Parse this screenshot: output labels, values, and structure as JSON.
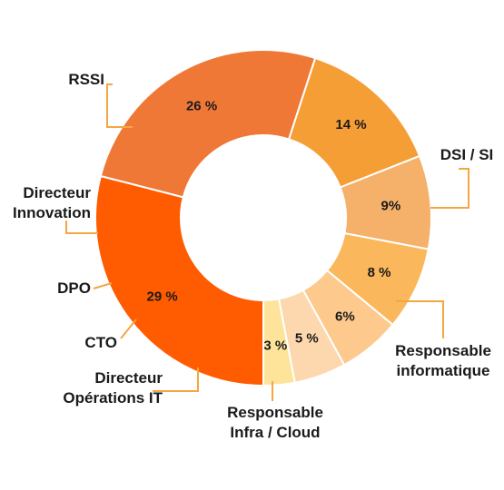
{
  "chart_data": {
    "type": "pie",
    "donut": true,
    "categories": [
      "RSSI",
      "DSI / SI",
      "Responsable informatique",
      "Responsable Infra / Cloud",
      "Directeur Opérations IT",
      "CTO",
      "DPO",
      "Directeur Innovation"
    ],
    "values": [
      29,
      26,
      14,
      9,
      8,
      6,
      5,
      3
    ],
    "value_labels": [
      "29 %",
      "26 %",
      "14 %",
      "9%",
      "8 %",
      "6%",
      "5 %",
      "3 %"
    ],
    "label_lines": [
      [
        "RSSI"
      ],
      [
        "DSI / SI"
      ],
      [
        "Responsable",
        "informatique"
      ],
      [
        "Responsable",
        "Infra / Cloud"
      ],
      [
        "Directeur",
        "Opérations IT"
      ],
      [
        "CTO"
      ],
      [
        "DPO"
      ],
      [
        "Directeur",
        "Innovation"
      ]
    ],
    "colors": [
      "#FF5B00",
      "#F07837",
      "#F59E36",
      "#F5B06A",
      "#FBB75C",
      "#FDC98C",
      "#FDD8AE",
      "#FDE49A"
    ],
    "leader_color": "#F5A640",
    "legend": "none"
  }
}
